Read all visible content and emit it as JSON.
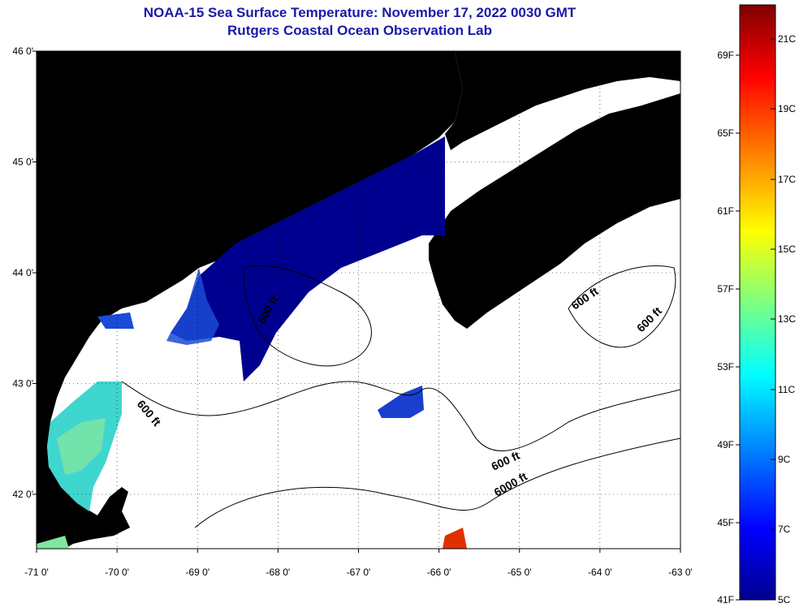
{
  "header": {
    "title": "NOAA-15 Sea Surface Temperature:  November 17, 2022 0030 GMT",
    "subtitle": "Rutgers Coastal Ocean Observation Lab"
  },
  "map": {
    "lon_ticks": [
      "-71 0'",
      "-70 0'",
      "-69 0'",
      "-68 0'",
      "-67 0'",
      "-66 0'",
      "-65 0'",
      "-64 0'",
      "-63 0'"
    ],
    "lat_ticks": [
      "46 0'",
      "45 0'",
      "44 0'",
      "43 0'",
      "42 0'"
    ],
    "contour_labels": [
      "600 ft",
      "600 ft",
      "600 ft",
      "600 ft",
      "6000 ft",
      "600 ft"
    ],
    "colors": {
      "land": "#a6a6a6",
      "sea": "#ffffff",
      "sst_cold": "#00008f",
      "sst_blue": "#1a4bd6",
      "sst_cyan": "#3fd6d0",
      "sst_green": "#7fe6a0",
      "sst_warm": "#e03000"
    }
  },
  "colorbar": {
    "fahrenheit_labels": [
      "69F",
      "65F",
      "61F",
      "57F",
      "53F",
      "49F",
      "45F",
      "41F"
    ],
    "celsius_labels": [
      "21C",
      "19C",
      "17C",
      "15C",
      "13C",
      "11C",
      "9C",
      "7C",
      "5C"
    ]
  }
}
